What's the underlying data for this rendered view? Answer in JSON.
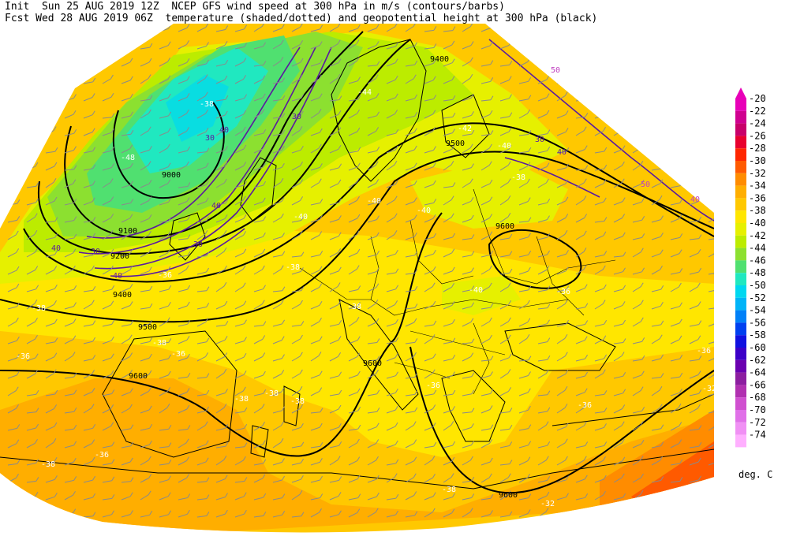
{
  "header": {
    "line1": "Init  Sun 25 AUG 2019 12Z  NCEP GFS wind speed at 300 hPa in m/s (contours/barbs)",
    "line2": "Fcst Wed 28 AUG 2019 06Z  temperature (shaded/dotted) and geopotential height at 300 hPa (black)"
  },
  "legend": {
    "unit": "deg. C",
    "levels": [
      {
        "label": "-20",
        "color": "#e800b8"
      },
      {
        "label": "-22",
        "color": "#d00090"
      },
      {
        "label": "-24",
        "color": "#c8006a"
      },
      {
        "label": "-26",
        "color": "#e8002e"
      },
      {
        "label": "-28",
        "color": "#ff2600"
      },
      {
        "label": "-30",
        "color": "#ff5a00"
      },
      {
        "label": "-32",
        "color": "#ff8c00"
      },
      {
        "label": "-34",
        "color": "#ffae00"
      },
      {
        "label": "-36",
        "color": "#ffc800"
      },
      {
        "label": "-38",
        "color": "#ffe600"
      },
      {
        "label": "-40",
        "color": "#e6f000"
      },
      {
        "label": "-42",
        "color": "#bcec00"
      },
      {
        "label": "-44",
        "color": "#8ce030"
      },
      {
        "label": "-46",
        "color": "#50e070"
      },
      {
        "label": "-48",
        "color": "#20e8c0"
      },
      {
        "label": "-50",
        "color": "#00d8f0"
      },
      {
        "label": "-52",
        "color": "#00b4f8"
      },
      {
        "label": "-54",
        "color": "#0080f8"
      },
      {
        "label": "-56",
        "color": "#0040f0"
      },
      {
        "label": "-58",
        "color": "#1010e0"
      },
      {
        "label": "-60",
        "color": "#3c00c8"
      },
      {
        "label": "-62",
        "color": "#6a00b0"
      },
      {
        "label": "-64",
        "color": "#8c1ea0"
      },
      {
        "label": "-66",
        "color": "#b030b0"
      },
      {
        "label": "-68",
        "color": "#d050d0"
      },
      {
        "label": "-70",
        "color": "#e070e8"
      },
      {
        "label": "-72",
        "color": "#f090f4"
      },
      {
        "label": "-74",
        "color": "#ffb0ff"
      }
    ]
  },
  "height_labels": [
    "9400",
    "9500",
    "9000",
    "9100",
    "9200",
    "9400",
    "9500",
    "9600",
    "9600",
    "9600",
    "9600"
  ],
  "temp_labels": [
    "-38",
    "-48",
    "-42",
    "-40",
    "-40",
    "-40",
    "-38",
    "-38",
    "-36",
    "-38",
    "-40",
    "-38",
    "-36",
    "-38",
    "-36",
    "-36",
    "-36",
    "-38",
    "-38",
    "-38",
    "-36",
    "-36",
    "-36",
    "-32",
    "-32",
    "-38",
    "-40",
    "-44",
    "-38"
  ],
  "wind_labels": [
    "40",
    "30",
    "40",
    "30",
    "40",
    "30",
    "30",
    "30",
    "40",
    "40",
    "50",
    "50",
    "40"
  ]
}
